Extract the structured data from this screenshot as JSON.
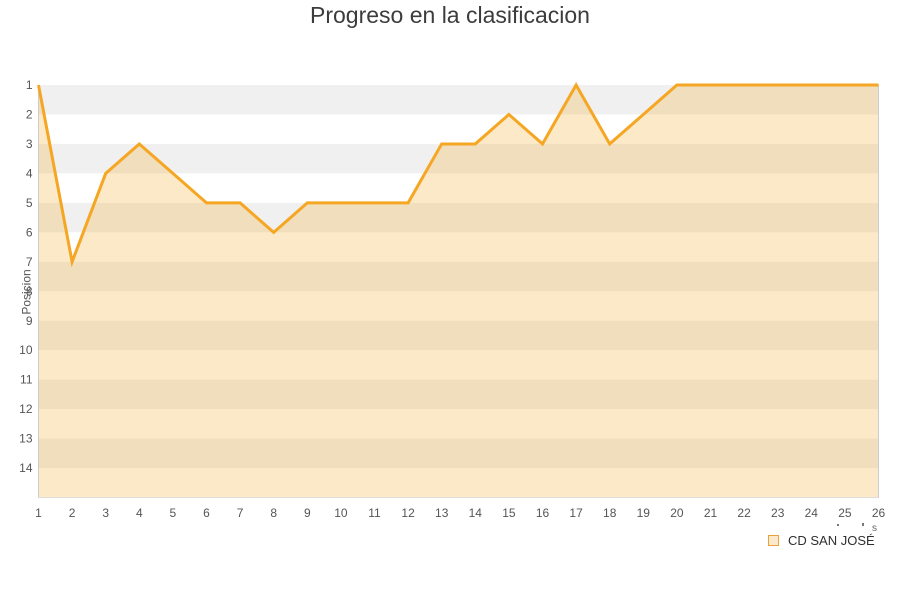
{
  "title": "Progreso en la clasificacion",
  "y_axis": {
    "label": "Posicion"
  },
  "legend": {
    "label": "CD SAN JOSÉ"
  },
  "fragments": {
    "s": "s"
  },
  "colors": {
    "line": "#F5A623",
    "band_gray": "#F0F0F0",
    "band_white": "#FFFFFF",
    "plot_border": "#CCCCCC",
    "plot_bottom_border": "#DDDDDD",
    "axis_text": "#555555",
    "title_text": "#3C3C3C",
    "legend_text": "#2F2F2F",
    "legend_swatch_fill": "#FBE9CB",
    "legend_swatch_border": "#E8A33D"
  },
  "chart_data": {
    "type": "area",
    "title": "Progreso en la clasificacion",
    "x": [
      1,
      2,
      3,
      4,
      5,
      6,
      7,
      8,
      9,
      10,
      11,
      12,
      13,
      14,
      15,
      16,
      17,
      18,
      19,
      20,
      21,
      22,
      23,
      24,
      25,
      26
    ],
    "series": [
      {
        "name": "CD SAN JOSÉ",
        "values": [
          1,
          7,
          4,
          3,
          4,
          5,
          5,
          6,
          5,
          5,
          5,
          5,
          3,
          3,
          2,
          3,
          1,
          3,
          2,
          1,
          1,
          1,
          1,
          1,
          1,
          1
        ]
      }
    ],
    "xlabel": "",
    "ylabel": "Posicion",
    "y_ticks": [
      1,
      2,
      3,
      4,
      5,
      6,
      7,
      8,
      9,
      10,
      11,
      12,
      13,
      14
    ],
    "ylim": [
      14,
      1
    ],
    "y_inverted": true,
    "grid": "horizontal-alternating-bands",
    "legend_position": "bottom-right",
    "line_color": "#F5A623",
    "area_opacity": 0.25
  }
}
